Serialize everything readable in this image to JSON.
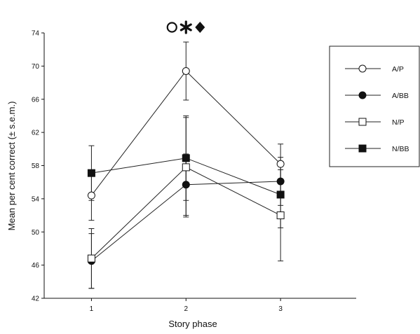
{
  "chart_data": {
    "type": "line",
    "xlabel": "Story phase",
    "ylabel": "Mean per cent correct (± s.e.m.)",
    "x": [
      1,
      2,
      3
    ],
    "x_ticks": [
      "1",
      "2",
      "3"
    ],
    "xlim": [
      0.5,
      3.8
    ],
    "ylim": [
      42,
      74
    ],
    "y_ticks": [
      42,
      46,
      50,
      54,
      58,
      62,
      66,
      70,
      74
    ],
    "grid": false,
    "legend_position": "top-right",
    "series": [
      {
        "name": "A/P",
        "marker": "circle",
        "filled": false,
        "values": [
          54.4,
          69.4,
          58.2
        ],
        "sem": [
          3.0,
          3.5,
          2.4
        ]
      },
      {
        "name": "A/BB",
        "marker": "circle",
        "filled": true,
        "values": [
          46.5,
          55.7,
          56.1
        ],
        "sem": [
          3.3,
          3.7,
          2.9
        ]
      },
      {
        "name": "N/P",
        "marker": "square",
        "filled": false,
        "values": [
          46.8,
          57.8,
          52.0
        ],
        "sem": [
          3.6,
          6.0,
          5.5
        ]
      },
      {
        "name": "N/BB",
        "marker": "square",
        "filled": true,
        "values": [
          57.1,
          58.9,
          54.5
        ],
        "sem": [
          3.3,
          5.1,
          4.0
        ]
      }
    ],
    "annotations": [
      {
        "x": 2,
        "symbols": [
          "open-circle",
          "asterisk",
          "diamond"
        ]
      }
    ]
  }
}
